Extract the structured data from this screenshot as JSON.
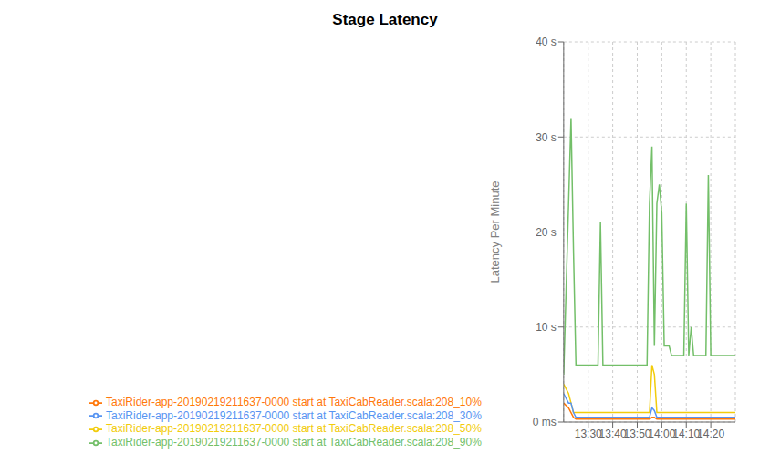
{
  "chart_data": {
    "type": "line",
    "title": "Stage Latency",
    "y_label": "Latency Per Minute",
    "x": [
      5,
      7,
      8,
      9,
      10,
      11,
      12,
      13,
      14,
      15,
      16,
      17,
      18,
      19,
      20,
      21,
      22,
      23,
      24,
      25,
      26,
      27,
      28,
      29,
      30,
      31,
      32,
      33,
      34,
      35,
      36,
      37,
      38,
      39,
      40,
      41,
      42,
      43,
      44,
      45,
      46,
      47,
      48,
      49,
      50,
      51,
      52,
      53,
      54,
      55,
      56,
      57,
      58,
      59,
      60,
      61,
      62,
      63,
      64,
      65,
      66,
      67,
      68,
      69,
      70,
      71,
      72,
      73,
      74,
      75
    ],
    "xlim": [
      5,
      75
    ],
    "xticks": [
      {
        "value": 15,
        "label": "13:30"
      },
      {
        "value": 25,
        "label": "13:40"
      },
      {
        "value": 35,
        "label": "13:50"
      },
      {
        "value": 45,
        "label": "14:00"
      },
      {
        "value": 55,
        "label": "14:10"
      },
      {
        "value": 65,
        "label": "14:20"
      }
    ],
    "ylim": [
      0,
      40
    ],
    "yticks": [
      {
        "value": 0,
        "label": "0 ms"
      },
      {
        "value": 10,
        "label": "10 s"
      },
      {
        "value": 20,
        "label": "20 s"
      },
      {
        "value": 30,
        "label": "30 s"
      },
      {
        "value": 40,
        "label": "40 s"
      }
    ],
    "grid": true,
    "legend": "bottom",
    "series": [
      {
        "name": "TaxiRider-app-20190219211637-0000 start at TaxiCabReader.scala:208_90%",
        "color": "#73bf69",
        "values": [
          5,
          23,
          32,
          18,
          6,
          6,
          6,
          6,
          6,
          6,
          6,
          6,
          6,
          6,
          21,
          6,
          6,
          6,
          6,
          6,
          6,
          6,
          6,
          6,
          6,
          6,
          6,
          6,
          6,
          6,
          6,
          6,
          6,
          6,
          23,
          29,
          8,
          23,
          25,
          22,
          8,
          8,
          8,
          7,
          7,
          7,
          7,
          7,
          7,
          23,
          7,
          10,
          7,
          7,
          7,
          7,
          7,
          7,
          26,
          7,
          7,
          7,
          7,
          7,
          7,
          7,
          7,
          7,
          7,
          7
        ]
      },
      {
        "name": "TaxiRider-app-20190219211637-0000 start at TaxiCabReader.scala:208_50%",
        "color": "#f2cc0c",
        "values": [
          4,
          3,
          2,
          1,
          1,
          1,
          1,
          1,
          1,
          1,
          1,
          1,
          1,
          1,
          1,
          1,
          1,
          1,
          1,
          1,
          1,
          1,
          1,
          1,
          1,
          1,
          1,
          1,
          1,
          1,
          1,
          1,
          1,
          1,
          1,
          6,
          5,
          1,
          1,
          1,
          1,
          1,
          1,
          1,
          1,
          1,
          1,
          1,
          1,
          1,
          1,
          1,
          1,
          1,
          1,
          1,
          1,
          1,
          1,
          1,
          1,
          1,
          1,
          1,
          1,
          1,
          1,
          1,
          1,
          1
        ]
      },
      {
        "name": "TaxiRider-app-20190219211637-0000 start at TaxiCabReader.scala:208_30%",
        "color": "#5794f2",
        "values": [
          3,
          2,
          2,
          1,
          0.5,
          0.5,
          0.5,
          0.5,
          0.5,
          0.5,
          0.5,
          0.5,
          0.5,
          0.5,
          0.5,
          0.5,
          0.5,
          0.5,
          0.5,
          0.5,
          0.5,
          0.5,
          0.5,
          0.5,
          0.5,
          0.5,
          0.5,
          0.5,
          0.5,
          0.5,
          0.5,
          0.5,
          0.5,
          0.5,
          0.5,
          1.5,
          1.2,
          0.5,
          0.5,
          0.5,
          0.5,
          0.5,
          0.5,
          0.5,
          0.5,
          0.5,
          0.5,
          0.5,
          0.5,
          0.5,
          0.5,
          0.5,
          0.5,
          0.5,
          0.5,
          0.5,
          0.5,
          0.5,
          0.5,
          0.5,
          0.5,
          0.5,
          0.5,
          0.5,
          0.5,
          0.5,
          0.5,
          0.5,
          0.5,
          0.5
        ]
      },
      {
        "name": "TaxiRider-app-20190219211637-0000 start at TaxiCabReader.scala:208_10%",
        "color": "#ff780a",
        "values": [
          2,
          1.5,
          1,
          0.5,
          0.3,
          0.3,
          0.3,
          0.3,
          0.3,
          0.3,
          0.3,
          0.3,
          0.3,
          0.3,
          0.3,
          0.3,
          0.3,
          0.3,
          0.3,
          0.3,
          0.3,
          0.3,
          0.3,
          0.3,
          0.3,
          0.3,
          0.3,
          0.3,
          0.3,
          0.3,
          0.3,
          0.3,
          0.3,
          0.3,
          0.3,
          0.5,
          0.5,
          0.3,
          0.3,
          0.3,
          0.3,
          0.3,
          0.3,
          0.3,
          0.3,
          0.3,
          0.3,
          0.3,
          0.3,
          0.3,
          0.3,
          0.3,
          0.3,
          0.3,
          0.3,
          0.3,
          0.3,
          0.3,
          0.3,
          0.3,
          0.3,
          0.3,
          0.3,
          0.3,
          0.3,
          0.3,
          0.3,
          0.3,
          0.3,
          0.3
        ]
      }
    ]
  }
}
